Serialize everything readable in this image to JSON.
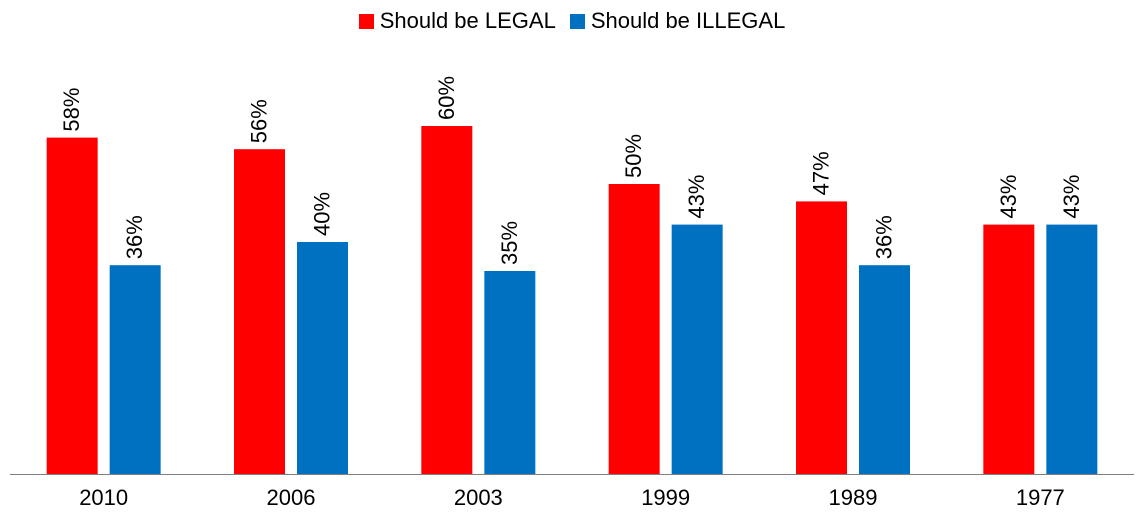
{
  "chart_data": {
    "type": "bar",
    "categories": [
      "2010",
      "2006",
      "2003",
      "1999",
      "1989",
      "1977"
    ],
    "series": [
      {
        "name": "Should be LEGAL",
        "color": "#ff0000",
        "values": [
          58,
          56,
          60,
          50,
          47,
          43
        ],
        "labels": [
          "58%",
          "56%",
          "60%",
          "50%",
          "47%",
          "43%"
        ]
      },
      {
        "name": "Should be ILLEGAL",
        "color": "#0070c0",
        "values": [
          36,
          40,
          35,
          43,
          36,
          43
        ],
        "labels": [
          "36%",
          "40%",
          "35%",
          "43%",
          "36%",
          "43%"
        ]
      }
    ],
    "ylim": [
      0,
      70
    ],
    "grid": false,
    "legend": "top-center",
    "title": "",
    "xlabel": "",
    "ylabel": ""
  }
}
